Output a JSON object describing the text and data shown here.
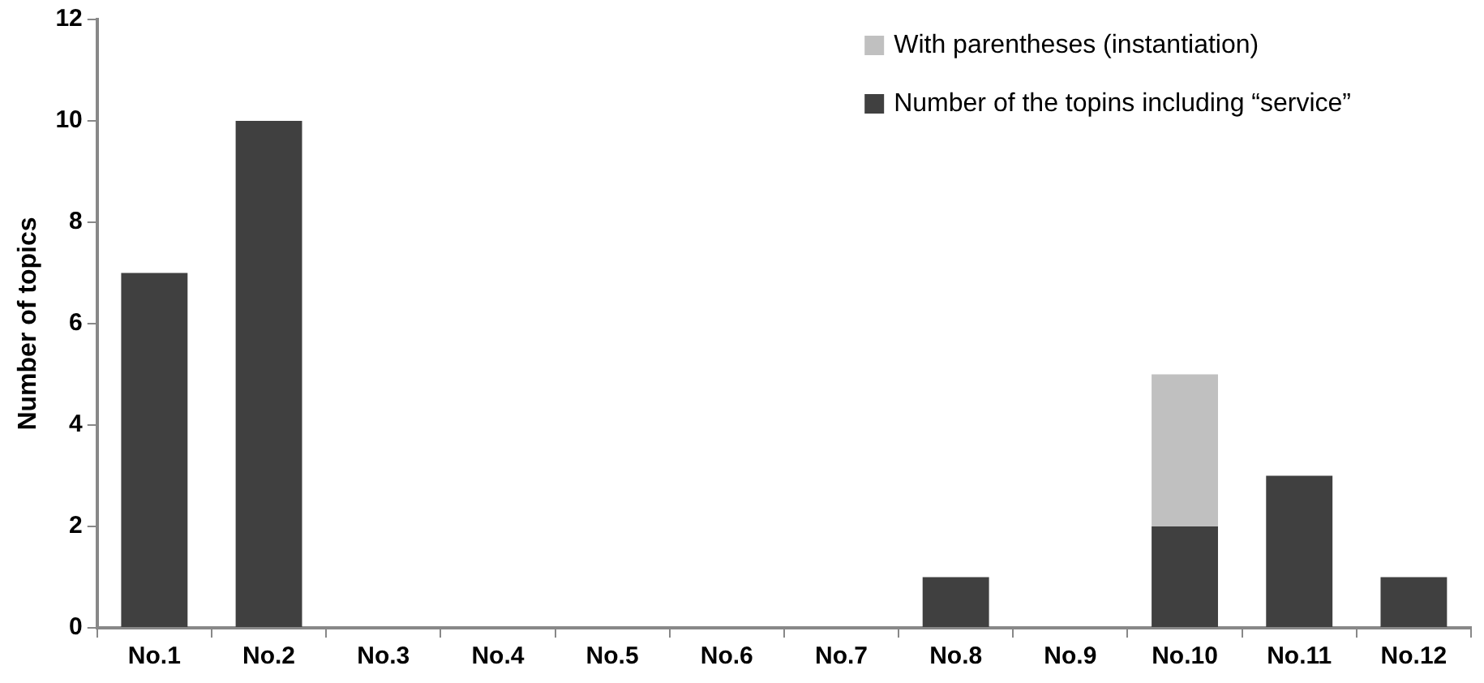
{
  "chart_data": {
    "type": "bar",
    "ylabel": "Number of topics",
    "categories": [
      "No.1",
      "No.2",
      "No.3",
      "No.4",
      "No.5",
      "No.6",
      "No.7",
      "No.8",
      "No.9",
      "No.10",
      "No.11",
      "No.12"
    ],
    "stacked": true,
    "series": [
      {
        "name": "Number of the topins including “service”",
        "color": "#404040",
        "values": [
          7,
          10,
          0,
          0,
          0,
          0,
          0,
          1,
          0,
          2,
          3,
          1
        ]
      },
      {
        "name": "With parentheses (instantiation)",
        "color": "#c0c0c0",
        "values": [
          0,
          0,
          0,
          0,
          0,
          0,
          0,
          0,
          0,
          3,
          0,
          0
        ]
      }
    ],
    "ylim": [
      0,
      12
    ],
    "yticks": [
      0,
      2,
      4,
      6,
      8,
      10,
      12
    ],
    "grid": false,
    "legend": "top right"
  }
}
